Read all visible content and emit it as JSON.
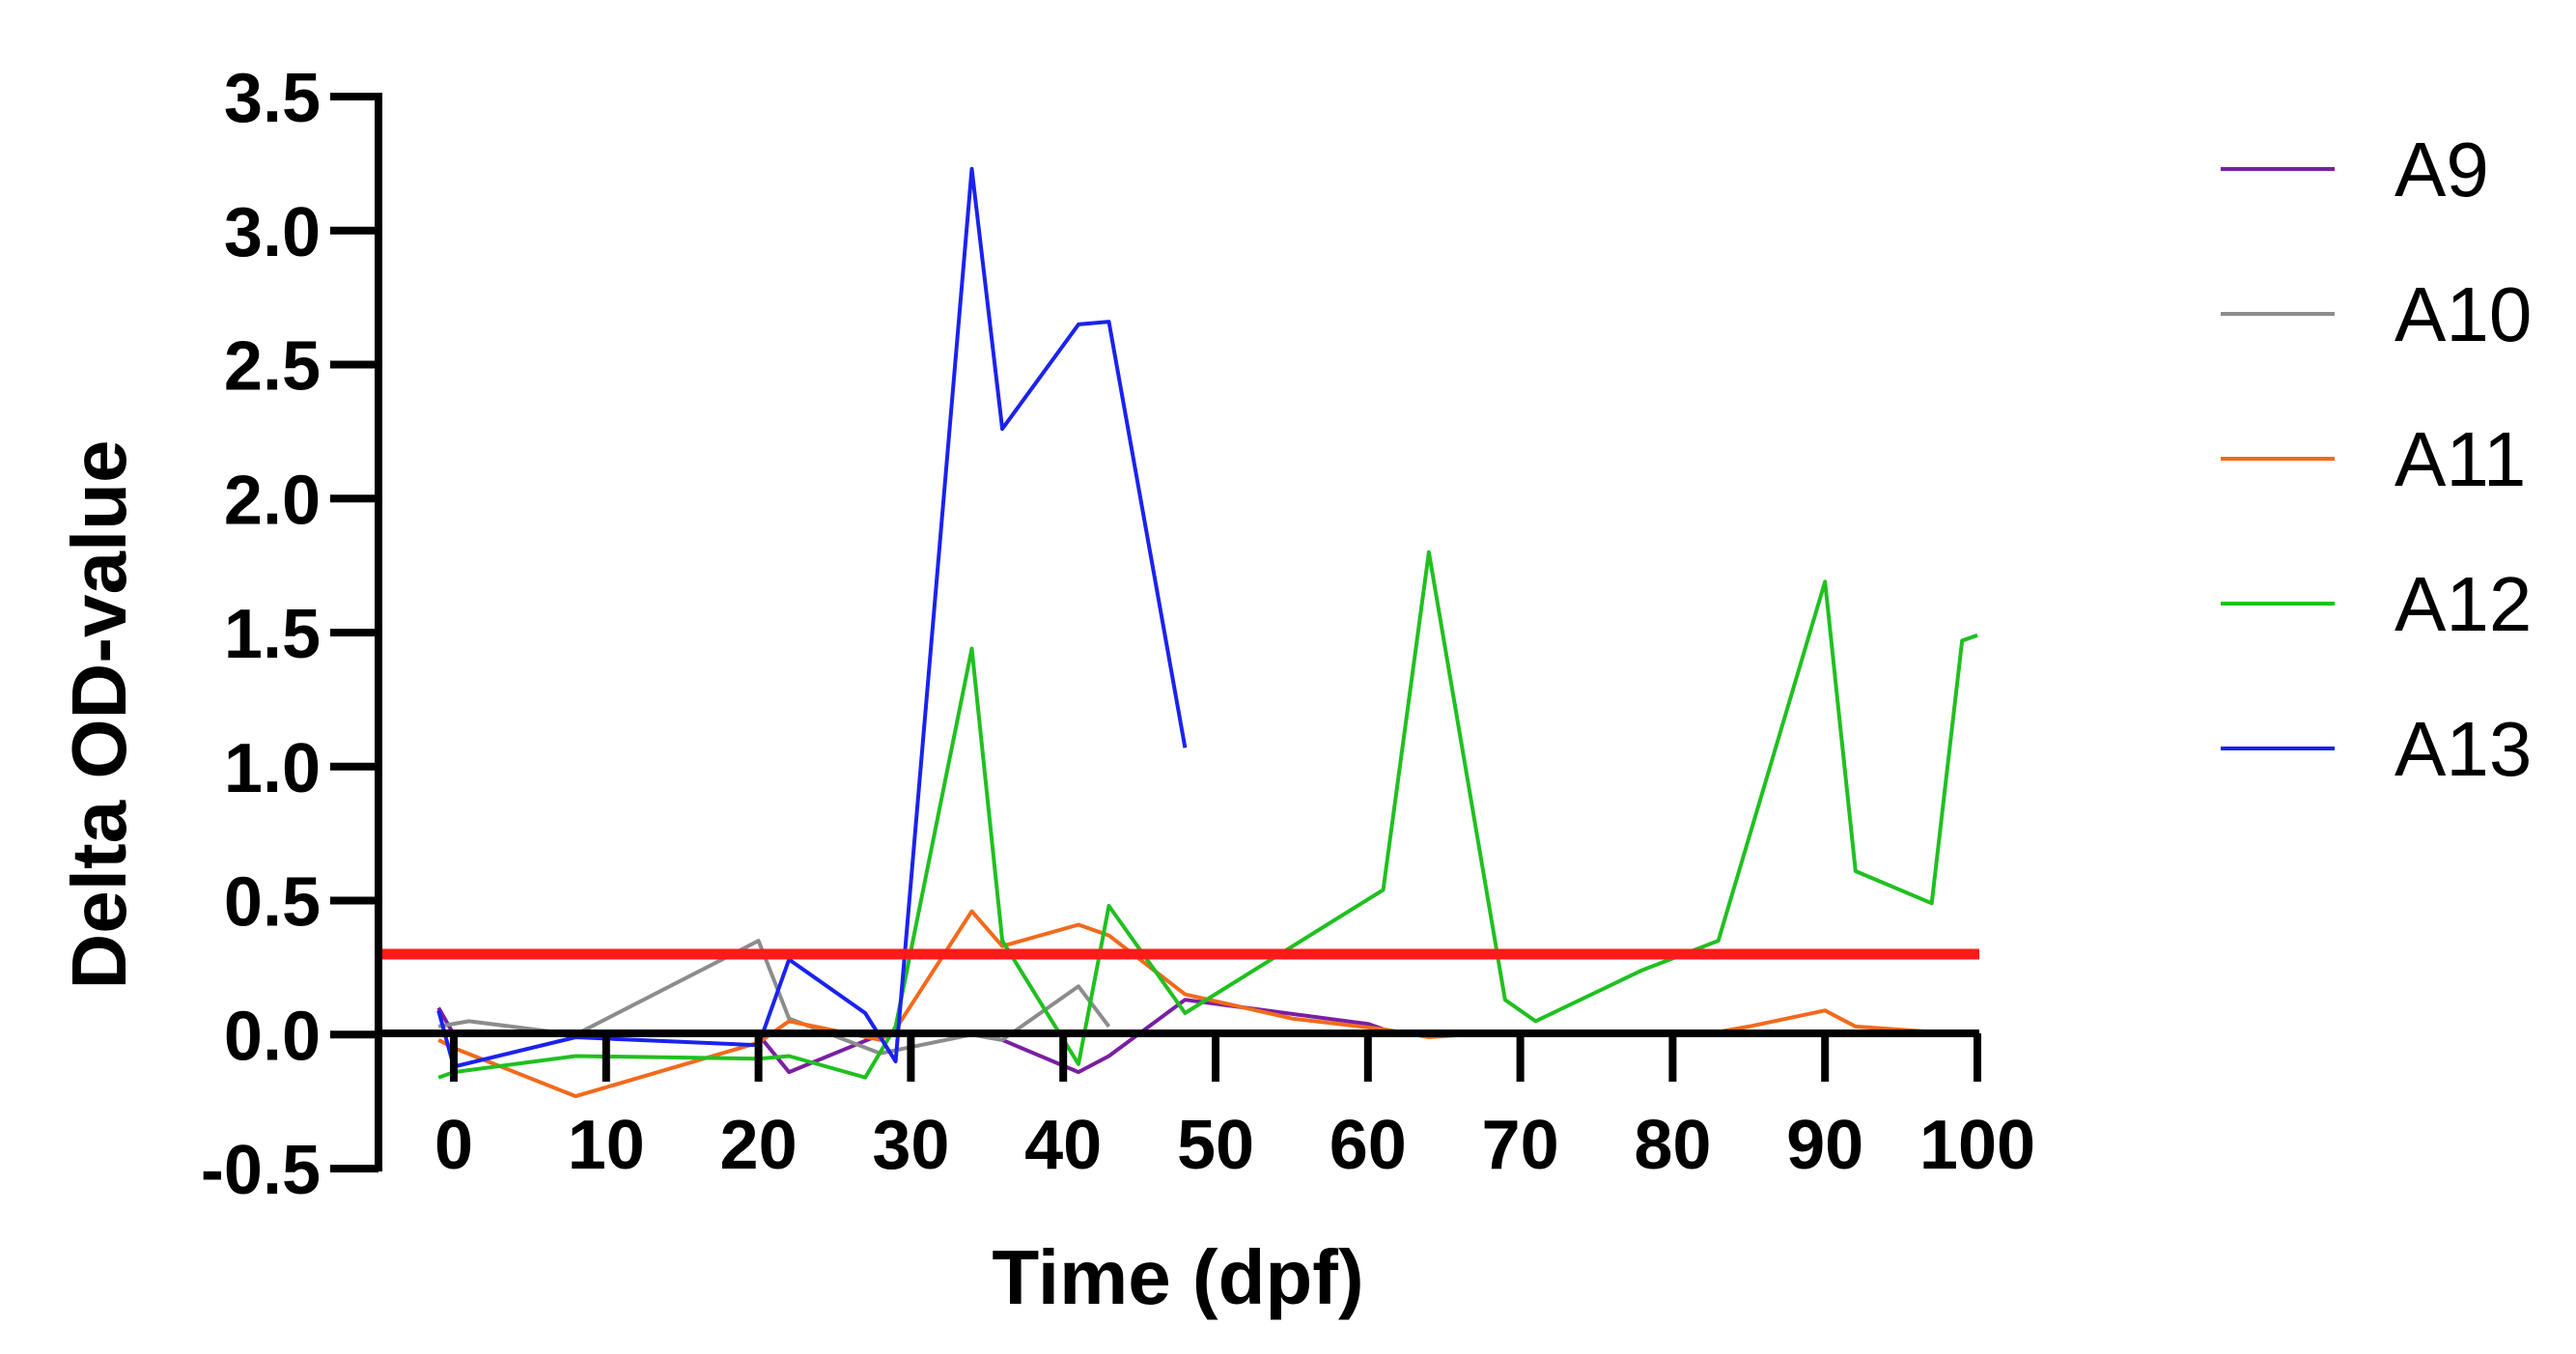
{
  "chart_data": {
    "type": "line",
    "title": "",
    "xlabel": "Time (dpf)",
    "ylabel": "Delta OD-value",
    "xlim": [
      -4,
      100
    ],
    "ylim": [
      -0.5,
      3.5
    ],
    "x_ticks": [
      0,
      10,
      20,
      30,
      40,
      50,
      60,
      70,
      80,
      90,
      100
    ],
    "y_ticks": [
      -0.5,
      0.0,
      0.5,
      1.0,
      1.5,
      2.0,
      2.5,
      3.0,
      3.5
    ],
    "x_tick_labels": [
      "0",
      "10",
      "20",
      "30",
      "40",
      "50",
      "60",
      "70",
      "80",
      "90",
      "100"
    ],
    "y_tick_labels": [
      "-0.5",
      "0.0",
      "0.5",
      "1.0",
      "1.5",
      "2.0",
      "2.5",
      "3.0",
      "3.5"
    ],
    "grid": false,
    "legend_position": "right",
    "threshold": {
      "value": 0.3,
      "color": "#ff1a1a"
    },
    "series": [
      {
        "name": "A9",
        "color": "#7a1fa2",
        "x": [
          -1,
          0,
          2,
          8,
          20,
          22,
          28,
          34,
          36,
          41,
          43,
          48,
          60,
          61
        ],
        "y": [
          0.1,
          0.0,
          0.0,
          0.0,
          0.0,
          -0.14,
          0.0,
          0.0,
          -0.02,
          -0.14,
          -0.08,
          0.13,
          0.04,
          0.02
        ]
      },
      {
        "name": "A10",
        "color": "#8c8c8c",
        "x": [
          -1,
          1,
          8,
          20,
          22,
          28,
          34,
          36,
          41,
          43
        ],
        "y": [
          0.03,
          0.05,
          0.0,
          0.35,
          0.06,
          -0.07,
          0.0,
          -0.02,
          0.18,
          0.03
        ]
      },
      {
        "name": "A11",
        "color": "#f26a1b",
        "x": [
          -1,
          0,
          8,
          20,
          22,
          28,
          29,
          34,
          36,
          41,
          43,
          48,
          55,
          61,
          64,
          69,
          77,
          83,
          85,
          90,
          92,
          97,
          99,
          100
        ],
        "y": [
          -0.02,
          -0.05,
          -0.23,
          -0.03,
          0.05,
          -0.02,
          0.02,
          0.46,
          0.33,
          0.41,
          0.37,
          0.15,
          0.06,
          0.02,
          -0.01,
          0.01,
          0.0,
          0.01,
          0.03,
          0.09,
          0.03,
          0.01,
          0.01,
          0.01
        ]
      },
      {
        "name": "A12",
        "color": "#20c020",
        "x": [
          -1,
          0,
          8,
          20,
          22,
          27,
          29,
          34,
          36,
          41,
          43,
          48,
          61,
          64,
          69,
          71,
          78,
          83,
          90,
          92,
          97,
          99,
          100
        ],
        "y": [
          -0.16,
          -0.14,
          -0.08,
          -0.09,
          -0.08,
          -0.16,
          0.03,
          1.44,
          0.35,
          -0.11,
          0.48,
          0.08,
          0.54,
          1.8,
          0.13,
          0.05,
          0.24,
          0.35,
          1.69,
          0.61,
          0.49,
          1.47,
          1.49
        ]
      },
      {
        "name": "A13",
        "color": "#1a22f0",
        "x": [
          -1,
          0,
          8,
          20,
          22,
          27,
          29,
          34,
          36,
          41,
          43,
          48
        ],
        "y": [
          0.09,
          -0.12,
          -0.01,
          -0.04,
          0.28,
          0.08,
          -0.1,
          3.23,
          2.26,
          2.65,
          2.66,
          1.07
        ]
      }
    ]
  }
}
